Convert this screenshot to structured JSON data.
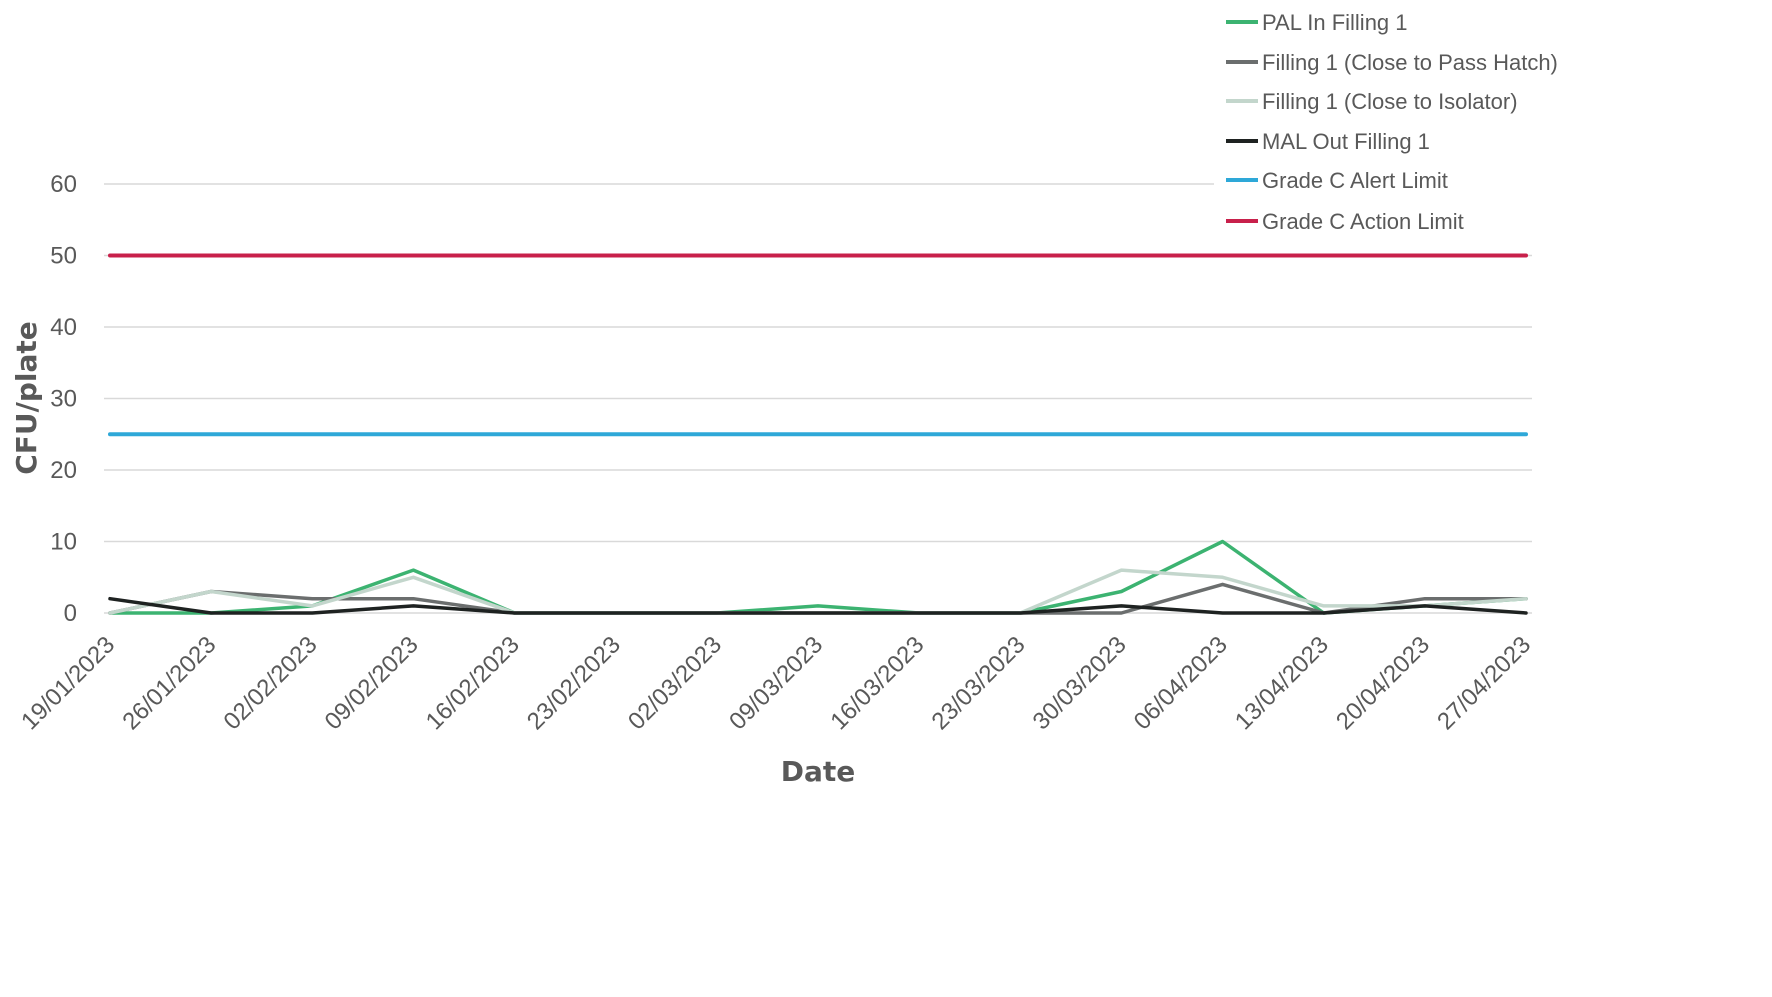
{
  "chart_data": {
    "type": "line",
    "title": "",
    "xlabel": "Date",
    "ylabel": "CFU/plate",
    "ylim": [
      0,
      60
    ],
    "yticks": [
      0,
      10,
      20,
      30,
      40,
      50,
      60
    ],
    "grid": true,
    "legend_position": "top-right",
    "categories": [
      "19/01/2023",
      "26/01/2023",
      "02/02/2023",
      "09/02/2023",
      "16/02/2023",
      "23/02/2023",
      "02/03/2023",
      "09/03/2023",
      "16/03/2023",
      "23/03/2023",
      "30/03/2023",
      "06/04/2023",
      "13/04/2023",
      "20/04/2023",
      "27/04/2023"
    ],
    "series": [
      {
        "name": "PAL In Filling 1",
        "color": "#3cb371",
        "values": [
          0,
          0,
          1,
          6,
          0,
          0,
          0,
          1,
          0,
          0,
          3,
          10,
          0,
          1,
          2
        ]
      },
      {
        "name": "Filling 1 (Close to Pass Hatch)",
        "color": "#6b6e6e",
        "values": [
          0,
          3,
          2,
          2,
          0,
          0,
          0,
          0,
          0,
          0,
          0,
          4,
          0,
          2,
          2
        ]
      },
      {
        "name": "Filling 1 (Close to Isolator)",
        "color": "#c3d6cc",
        "values": [
          0,
          3,
          1,
          5,
          0,
          0,
          0,
          0,
          0,
          0,
          6,
          5,
          1,
          1,
          2
        ]
      },
      {
        "name": "MAL Out Filling 1",
        "color": "#1e2221",
        "values": [
          2,
          0,
          0,
          1,
          0,
          0,
          0,
          0,
          0,
          0,
          1,
          0,
          0,
          1,
          0
        ]
      },
      {
        "name": "Grade C Alert Limit",
        "color": "#2ea8d8",
        "values": [
          25,
          25,
          25,
          25,
          25,
          25,
          25,
          25,
          25,
          25,
          25,
          25,
          25,
          25,
          25
        ]
      },
      {
        "name": "Grade C Action Limit",
        "color": "#c8204b",
        "values": [
          50,
          50,
          50,
          50,
          50,
          50,
          50,
          50,
          50,
          50,
          50,
          50,
          50,
          50,
          50
        ]
      }
    ]
  }
}
